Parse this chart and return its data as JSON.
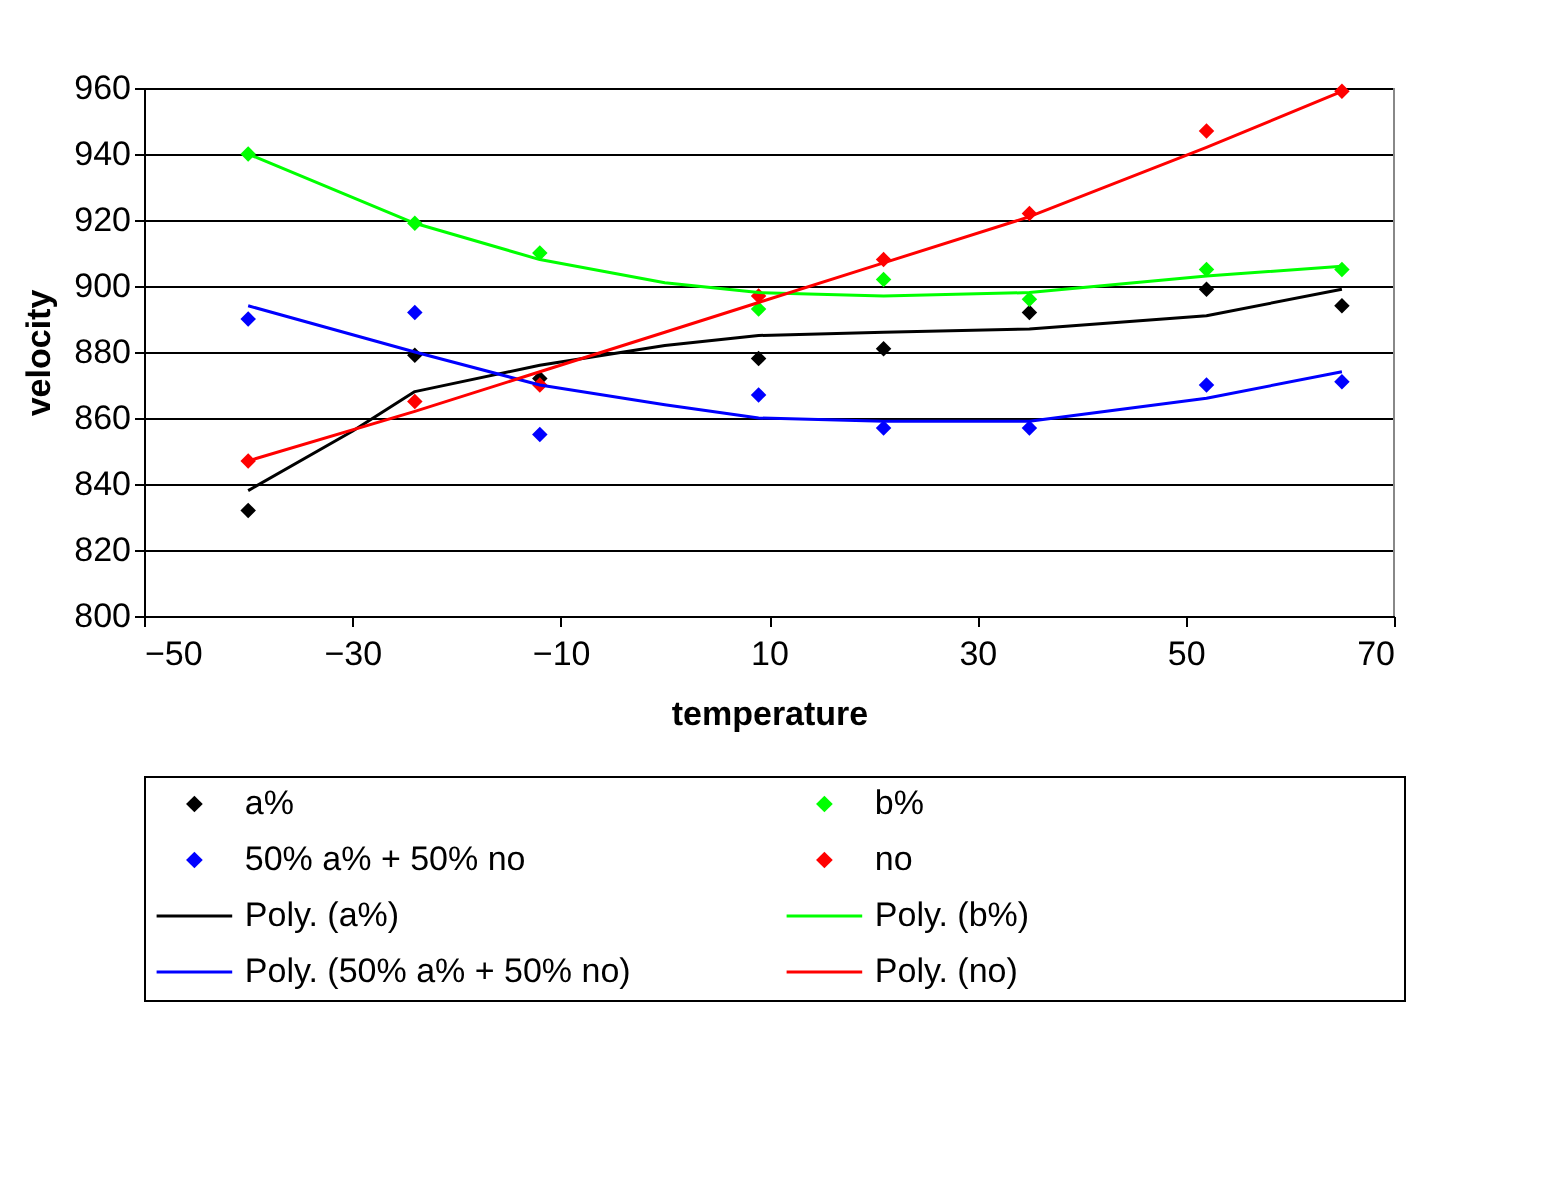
{
  "chart_data": {
    "type": "scatter",
    "xlabel": "temperature",
    "ylabel": "velocity",
    "xlim": [
      -50,
      70
    ],
    "xticks": [
      -50,
      -30,
      -10,
      10,
      30,
      50,
      70
    ],
    "ylim": [
      800,
      960
    ],
    "yticks": [
      800,
      820,
      840,
      860,
      880,
      900,
      920,
      940,
      960
    ],
    "grid": "y",
    "legend": "bottom",
    "marker": "diamond",
    "x": [
      -40,
      -24,
      -12,
      9,
      21,
      35,
      52,
      65
    ],
    "series": [
      {
        "name": "a%",
        "color": "#000000",
        "values": [
          832,
          879,
          872,
          878,
          881,
          892,
          899,
          894
        ]
      },
      {
        "name": "b%",
        "color": "#00ff00",
        "values": [
          940,
          919,
          910,
          893,
          902,
          896,
          905,
          905
        ]
      },
      {
        "name": "50% a% + 50% no",
        "color": "#0000ff",
        "values": [
          890,
          892,
          855,
          867,
          857,
          857,
          870,
          871
        ]
      },
      {
        "name": "no",
        "color": "#ff0000",
        "values": [
          847,
          865,
          870,
          897,
          908,
          922,
          947,
          959
        ]
      },
      {
        "name": "Poly. (a%)",
        "type": "line",
        "marker": "none",
        "line_style": "solid",
        "color": "#000000",
        "x": [
          -40,
          -30,
          -24,
          -12,
          0,
          9,
          21,
          35,
          52,
          65
        ],
        "values": [
          838,
          856,
          868,
          876,
          882,
          885,
          886,
          887,
          891,
          899
        ]
      },
      {
        "name": "Poly. (b%)",
        "type": "line",
        "marker": "none",
        "line_style": "solid",
        "color": "#00ff00",
        "x": [
          -40,
          -24,
          -12,
          0,
          9,
          21,
          35,
          52,
          65
        ],
        "values": [
          940,
          919,
          908,
          901,
          898,
          897,
          898,
          903,
          906
        ]
      },
      {
        "name": "Poly. (50% a% + 50% no)",
        "type": "line",
        "marker": "none",
        "line_style": "solid",
        "color": "#0000ff",
        "x": [
          -40,
          -24,
          -12,
          0,
          9,
          21,
          35,
          52,
          65
        ],
        "values": [
          894,
          880,
          870,
          864,
          860,
          859,
          859,
          866,
          874
        ]
      },
      {
        "name": "Poly. (no)",
        "type": "line",
        "marker": "none",
        "line_style": "solid",
        "color": "#ff0000",
        "x": [
          -40,
          -24,
          -12,
          0,
          9,
          21,
          35,
          52,
          65
        ],
        "values": [
          847,
          862,
          874,
          886,
          895,
          907,
          921,
          942,
          959
        ]
      }
    ]
  }
}
